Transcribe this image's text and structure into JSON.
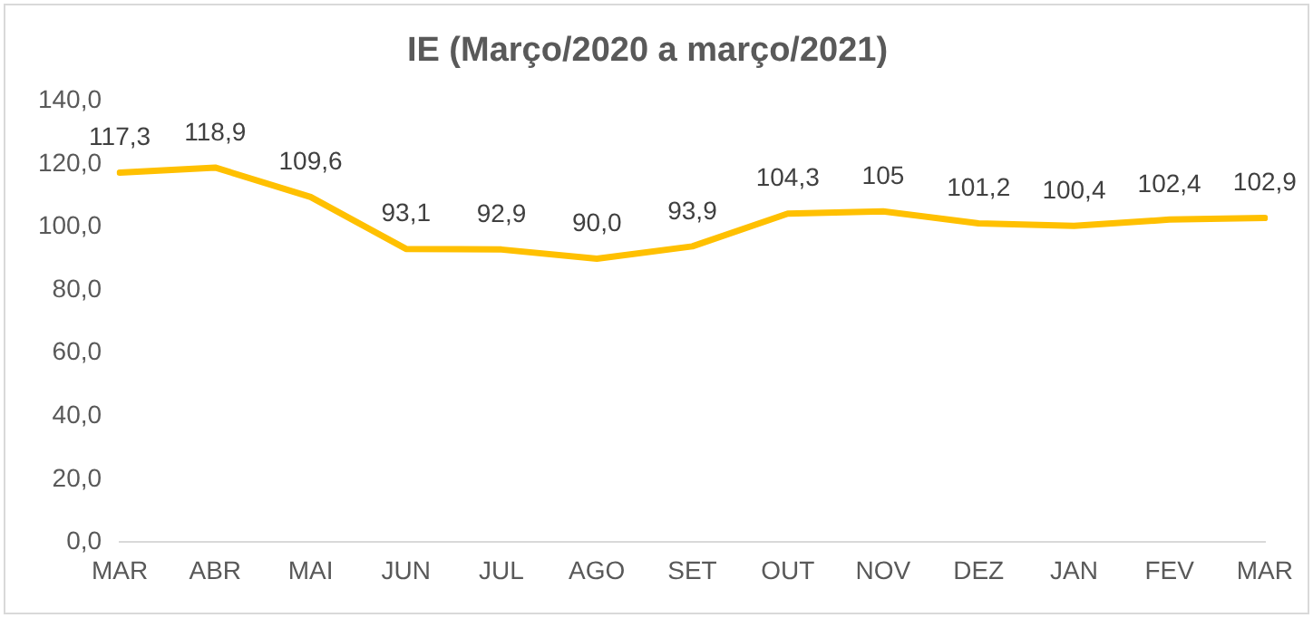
{
  "chart_data": {
    "type": "line",
    "title": "IE (Março/2020 a março/2021)",
    "categories": [
      "MAR",
      "ABR",
      "MAI",
      "JUN",
      "JUL",
      "AGO",
      "SET",
      "OUT",
      "NOV",
      "DEZ",
      "JAN",
      "FEV",
      "MAR"
    ],
    "series": [
      {
        "color": "#ffc000",
        "values": [
          117.3,
          118.9,
          109.6,
          93.1,
          92.9,
          90.0,
          93.9,
          104.3,
          105,
          101.2,
          100.4,
          102.4,
          102.9
        ],
        "value_labels": [
          "117,3",
          "118,9",
          "109,6",
          "93,1",
          "92,9",
          "90,0",
          "93,9",
          "104,3",
          "105",
          "101,2",
          "100,4",
          "102,4",
          "102,9"
        ]
      }
    ],
    "ylim": [
      0,
      140
    ],
    "yticks": [
      {
        "value": 0,
        "label": "0,0"
      },
      {
        "value": 20,
        "label": "20,0"
      },
      {
        "value": 40,
        "label": "40,0"
      },
      {
        "value": 60,
        "label": "60,0"
      },
      {
        "value": 80,
        "label": "80,0"
      },
      {
        "value": 100,
        "label": "100,0"
      },
      {
        "value": 120,
        "label": "120,0"
      },
      {
        "value": 140,
        "label": "140,0"
      }
    ],
    "marker": "none",
    "line_style": "solid",
    "legend": false
  }
}
